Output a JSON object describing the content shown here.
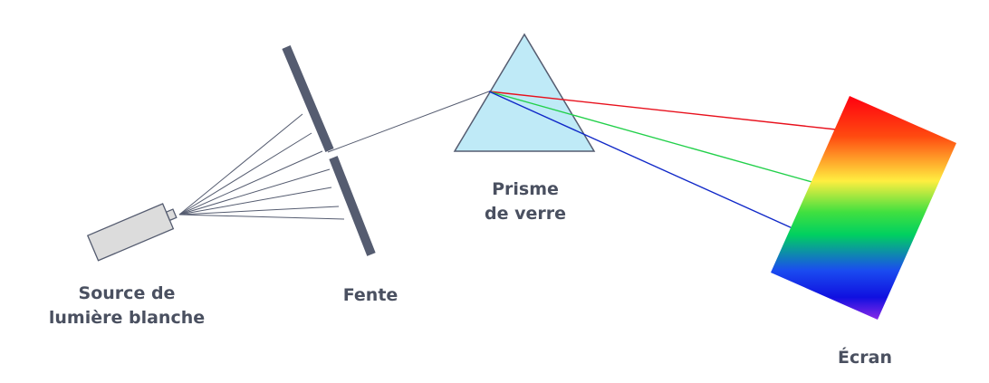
{
  "labels": {
    "source_line1": "Source de",
    "source_line2": "lumière blanche",
    "slit": "Fente",
    "prism_line1": "Prisme",
    "prism_line2": "de verre",
    "screen": "Écran"
  },
  "colors": {
    "slit": "#555c70",
    "source_body": "#dcdcdc",
    "source_stroke": "#555c70",
    "prism_fill": "#bfeaf7",
    "prism_stroke": "#555c70",
    "incident_ray": "#555c70",
    "ray_red": "#e8101c",
    "ray_green": "#22d04a",
    "ray_blue": "#1028c8",
    "label_text": "#4a5060"
  },
  "spectrum_colors": [
    "#ff0010",
    "#ff4a10",
    "#ffee40",
    "#40e040",
    "#00d060",
    "#1a4cf0",
    "#1010e0",
    "#8a28e8"
  ]
}
